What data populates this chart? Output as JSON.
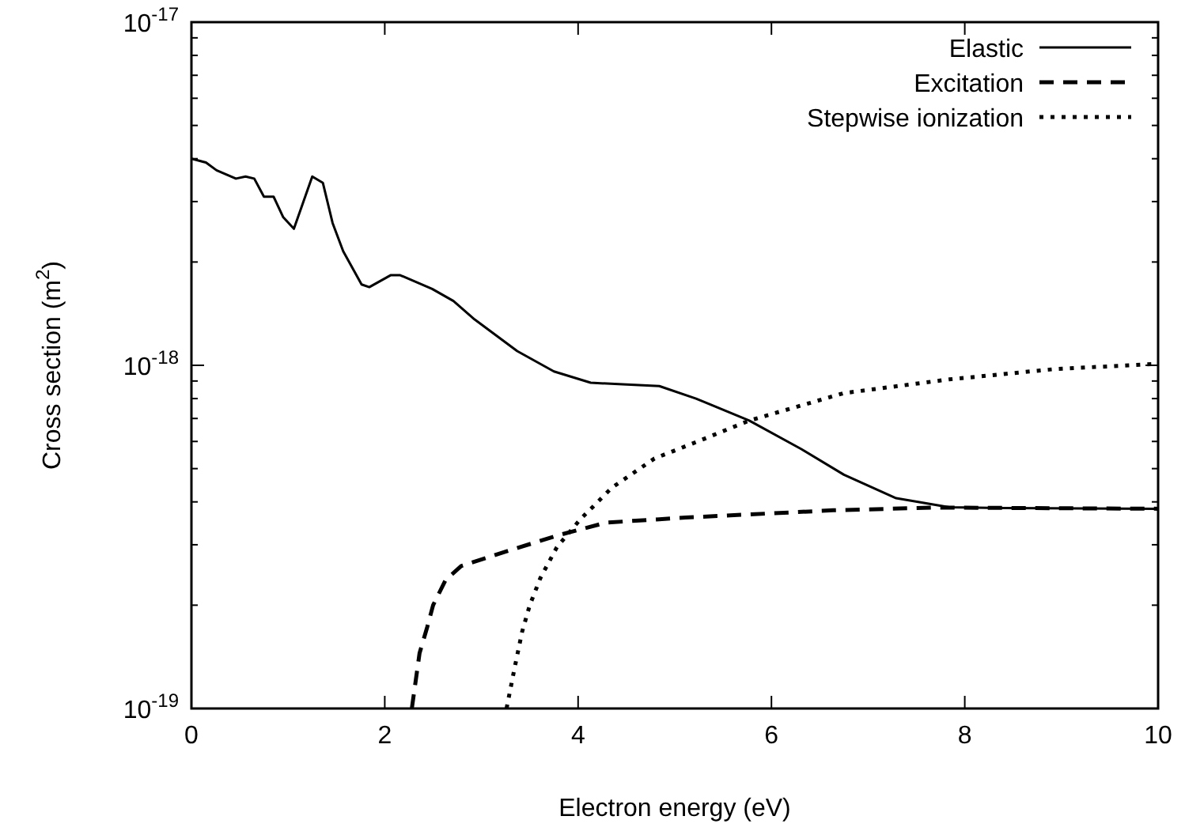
{
  "chart_data": {
    "type": "line",
    "xlabel": "Electron energy (eV)",
    "ylabel": "Cross section (m$^{2}$)",
    "log": "y",
    "xlim": [
      0,
      10
    ],
    "ylim": [
      1e-19,
      1e-17
    ],
    "xticks": [
      0,
      2,
      4,
      6,
      8,
      10
    ],
    "yticks": [
      {
        "value": 1e-19,
        "label": "10$^{-19}$"
      },
      {
        "value": 2e-19,
        "label": null
      },
      {
        "value": 3e-19,
        "label": null
      },
      {
        "value": 4e-19,
        "label": null
      },
      {
        "value": 5e-19,
        "label": null
      },
      {
        "value": 6e-19,
        "label": null
      },
      {
        "value": 7e-19,
        "label": null
      },
      {
        "value": 8e-19,
        "label": null
      },
      {
        "value": 9e-19,
        "label": null
      },
      {
        "value": 1e-18,
        "label": "10$^{-18}$"
      },
      {
        "value": 2e-18,
        "label": null
      },
      {
        "value": 3e-18,
        "label": null
      },
      {
        "value": 4e-18,
        "label": null
      },
      {
        "value": 5e-18,
        "label": null
      },
      {
        "value": 6e-18,
        "label": null
      },
      {
        "value": 7e-18,
        "label": null
      },
      {
        "value": 8e-18,
        "label": null
      },
      {
        "value": 9e-18,
        "label": null
      },
      {
        "value": 1e-17,
        "label": "10$^{-17}$"
      }
    ],
    "grid": false,
    "legend": "top right",
    "marker": "none",
    "series": [
      {
        "name": "Elastic",
        "color": "#000000",
        "line_style": "solid",
        "x": [
          0,
          0.15,
          0.26,
          0.46,
          0.56,
          0.65,
          0.75,
          0.85,
          0.95,
          1.06,
          1.25,
          1.36,
          1.46,
          1.57,
          1.76,
          1.84,
          2.06,
          2.16,
          2.49,
          2.71,
          2.93,
          3.37,
          3.75,
          4.13,
          4.46,
          4.84,
          5.22,
          5.77,
          6.31,
          6.75,
          7.29,
          7.84,
          8.38,
          10
        ],
        "values": [
          4e-18,
          3.9e-18,
          3.7e-18,
          3.5e-18,
          3.55e-18,
          3.5e-18,
          3.1e-18,
          3.1e-18,
          2.7e-18,
          2.5e-18,
          3.55e-18,
          3.4e-18,
          2.6e-18,
          2.15e-18,
          1.72e-18,
          1.69e-18,
          1.83e-18,
          1.83e-18,
          1.67e-18,
          1.54e-18,
          1.36e-18,
          1.1e-18,
          9.6e-19,
          8.9e-19,
          8.8e-19,
          8.7e-19,
          8e-19,
          6.9e-19,
          5.7e-19,
          4.8e-19,
          4.1e-19,
          3.86e-19,
          3.84e-19,
          3.82e-19
        ]
      },
      {
        "name": "Excitation",
        "color": "#000000",
        "line_style": "dashed",
        "x": [
          2.28,
          2.36,
          2.44,
          2.5,
          2.63,
          2.79,
          3.31,
          3.8,
          4.29,
          4.84,
          5.11,
          6.64,
          7.68,
          10
        ],
        "values": [
          1e-19,
          1.45e-19,
          1.73e-19,
          2e-19,
          2.37e-19,
          2.6e-19,
          2.9e-19,
          3.2e-19,
          3.48e-19,
          3.56e-19,
          3.6e-19,
          3.78e-19,
          3.85e-19,
          3.82e-19
        ]
      },
      {
        "name": "Stepwise ionization",
        "color": "#000000",
        "line_style": "dotted",
        "x": [
          3.26,
          3.34,
          3.42,
          3.5,
          3.61,
          3.78,
          4.02,
          4.35,
          4.79,
          5.27,
          5.77,
          6.75,
          7.84,
          8.93,
          10
        ],
        "values": [
          1e-19,
          1.3e-19,
          1.67e-19,
          2e-19,
          2.4e-19,
          2.95e-19,
          3.55e-19,
          4.4e-19,
          5.35e-19,
          6.05e-19,
          6.9e-19,
          8.3e-19,
          9.1e-19,
          9.75e-19,
          1.01e-18
        ]
      }
    ]
  }
}
